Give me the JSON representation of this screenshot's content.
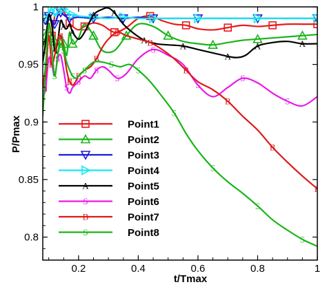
{
  "chart_data": {
    "type": "line",
    "title": "",
    "xlabel": "t/Tmax",
    "ylabel": "P/Pmax",
    "xlim": [
      0.08,
      1.0
    ],
    "ylim": [
      0.78,
      1.0
    ],
    "xticks": [
      0.2,
      0.4,
      0.6,
      0.8,
      1.0
    ],
    "xtick_labels": [
      "0.2",
      "0.4",
      "0.6",
      "0.8",
      "1"
    ],
    "yticks": [
      0.8,
      0.85,
      0.9,
      0.95,
      1.0
    ],
    "ytick_labels": [
      "0.8",
      "0.85",
      "0.9",
      "0.95",
      "1"
    ],
    "grid": false,
    "legend_position": "center-left",
    "series": [
      {
        "name": "Point1",
        "color": "#e8191a",
        "marker": "square",
        "x": [
          0.08,
          0.09,
          0.1,
          0.11,
          0.12,
          0.13,
          0.14,
          0.15,
          0.16,
          0.17,
          0.18,
          0.2,
          0.22,
          0.25,
          0.28,
          0.32,
          0.36,
          0.4,
          0.44,
          0.48,
          0.52,
          0.56,
          0.6,
          0.65,
          0.7,
          0.75,
          0.8,
          0.85,
          0.9,
          0.95,
          1.0
        ],
        "y": [
          0.93,
          0.95,
          0.985,
          0.975,
          0.992,
          0.994,
          0.999,
          0.996,
          0.991,
          0.986,
          0.983,
          0.98,
          0.983,
          0.986,
          0.984,
          0.978,
          0.982,
          0.99,
          0.992,
          0.988,
          0.985,
          0.984,
          0.981,
          0.98,
          0.982,
          0.984,
          0.983,
          0.984,
          0.985,
          0.985,
          0.985
        ]
      },
      {
        "name": "Point2",
        "color": "#19b419",
        "marker": "triangle",
        "x": [
          0.08,
          0.09,
          0.1,
          0.11,
          0.12,
          0.13,
          0.14,
          0.15,
          0.16,
          0.17,
          0.18,
          0.2,
          0.22,
          0.25,
          0.28,
          0.32,
          0.36,
          0.4,
          0.45,
          0.5,
          0.55,
          0.6,
          0.65,
          0.7,
          0.75,
          0.8,
          0.85,
          0.9,
          0.95,
          1.0
        ],
        "y": [
          0.965,
          0.975,
          0.99,
          0.985,
          0.97,
          0.96,
          0.975,
          0.968,
          0.958,
          0.978,
          0.968,
          0.973,
          0.985,
          0.975,
          0.962,
          0.962,
          0.975,
          0.985,
          0.983,
          0.975,
          0.97,
          0.968,
          0.967,
          0.969,
          0.971,
          0.972,
          0.973,
          0.974,
          0.975,
          0.976
        ]
      },
      {
        "name": "Point3",
        "color": "#1a1ad8",
        "marker": "triangle-down",
        "x": [
          0.08,
          0.09,
          0.1,
          0.11,
          0.12,
          0.13,
          0.14,
          0.15,
          0.17,
          0.2,
          0.25,
          0.3,
          0.35,
          0.4,
          0.45,
          0.5,
          0.6,
          0.7,
          0.8,
          0.9,
          1.0
        ],
        "y": [
          0.99,
          0.985,
          0.992,
          0.988,
          0.985,
          0.992,
          0.995,
          0.993,
          0.99,
          0.991,
          0.99,
          0.991,
          0.99,
          0.991,
          0.99,
          0.99,
          0.99,
          0.99,
          0.99,
          0.99,
          0.99
        ]
      },
      {
        "name": "Point4",
        "color": "#1ae8f0",
        "marker": "triangle-right",
        "x": [
          0.08,
          0.09,
          0.1,
          0.11,
          0.12,
          0.13,
          0.14,
          0.15,
          0.16,
          0.18,
          0.2,
          0.25,
          0.3,
          0.35,
          0.4,
          0.45,
          0.5,
          0.6,
          0.7,
          0.8,
          0.9,
          1.0
        ],
        "y": [
          0.99,
          0.99,
          0.995,
          0.999,
          0.992,
          0.996,
          0.999,
          0.998,
          0.995,
          0.993,
          0.992,
          0.991,
          0.99,
          0.991,
          0.99,
          0.99,
          0.99,
          0.99,
          0.99,
          0.99,
          0.99,
          0.99
        ]
      },
      {
        "name": "Point5",
        "color": "#000000",
        "marker": "letter-A",
        "x": [
          0.08,
          0.09,
          0.1,
          0.11,
          0.12,
          0.13,
          0.14,
          0.15,
          0.16,
          0.17,
          0.18,
          0.2,
          0.22,
          0.25,
          0.28,
          0.3,
          0.32,
          0.35,
          0.38,
          0.42,
          0.46,
          0.5,
          0.55,
          0.6,
          0.65,
          0.7,
          0.73,
          0.76,
          0.8,
          0.85,
          0.9,
          0.95,
          1.0
        ],
        "y": [
          0.952,
          0.97,
          0.993,
          0.985,
          0.962,
          0.97,
          0.988,
          0.983,
          0.981,
          0.985,
          0.978,
          0.972,
          0.978,
          0.993,
          0.998,
          0.999,
          0.995,
          0.985,
          0.978,
          0.971,
          0.968,
          0.967,
          0.966,
          0.963,
          0.96,
          0.957,
          0.956,
          0.958,
          0.966,
          0.969,
          0.97,
          0.968,
          0.968
        ]
      },
      {
        "name": "Point6",
        "color": "#e81ae8",
        "marker": "letter-S",
        "x": [
          0.08,
          0.09,
          0.1,
          0.11,
          0.12,
          0.13,
          0.14,
          0.15,
          0.16,
          0.17,
          0.18,
          0.2,
          0.22,
          0.24,
          0.26,
          0.28,
          0.3,
          0.33,
          0.36,
          0.4,
          0.45,
          0.5,
          0.55,
          0.6,
          0.65,
          0.7,
          0.75,
          0.8,
          0.85,
          0.9,
          0.95,
          1.0
        ],
        "y": [
          0.92,
          0.93,
          0.955,
          0.95,
          0.94,
          0.955,
          0.958,
          0.945,
          0.93,
          0.925,
          0.93,
          0.935,
          0.94,
          0.938,
          0.945,
          0.948,
          0.945,
          0.938,
          0.942,
          0.955,
          0.963,
          0.958,
          0.95,
          0.932,
          0.922,
          0.93,
          0.938,
          0.934,
          0.925,
          0.918,
          0.914,
          0.922
        ]
      },
      {
        "name": "Point7",
        "color": "#dc1a1a",
        "marker": "letter-B",
        "x": [
          0.08,
          0.09,
          0.1,
          0.11,
          0.12,
          0.13,
          0.14,
          0.15,
          0.16,
          0.17,
          0.18,
          0.19,
          0.2,
          0.22,
          0.24,
          0.26,
          0.28,
          0.3,
          0.33,
          0.36,
          0.4,
          0.44,
          0.48,
          0.52,
          0.56,
          0.6,
          0.65,
          0.7,
          0.75,
          0.8,
          0.85,
          0.9,
          0.95,
          1.0
        ],
        "y": [
          0.93,
          0.94,
          0.975,
          0.95,
          0.958,
          0.972,
          0.975,
          0.962,
          0.945,
          0.935,
          0.932,
          0.935,
          0.94,
          0.945,
          0.948,
          0.955,
          0.965,
          0.972,
          0.978,
          0.975,
          0.972,
          0.969,
          0.963,
          0.955,
          0.945,
          0.935,
          0.928,
          0.918,
          0.905,
          0.893,
          0.878,
          0.865,
          0.853,
          0.842
        ]
      },
      {
        "name": "Point8",
        "color": "#19b419",
        "marker": "letter-S",
        "x": [
          0.08,
          0.09,
          0.1,
          0.11,
          0.12,
          0.13,
          0.14,
          0.15,
          0.16,
          0.17,
          0.18,
          0.19,
          0.2,
          0.22,
          0.25,
          0.28,
          0.31,
          0.34,
          0.37,
          0.4,
          0.44,
          0.48,
          0.52,
          0.56,
          0.6,
          0.65,
          0.7,
          0.75,
          0.8,
          0.85,
          0.9,
          0.95,
          1.0
        ],
        "y": [
          0.905,
          0.95,
          0.985,
          0.965,
          0.94,
          0.958,
          0.968,
          0.962,
          0.952,
          0.945,
          0.94,
          0.938,
          0.94,
          0.945,
          0.952,
          0.952,
          0.95,
          0.948,
          0.95,
          0.945,
          0.935,
          0.922,
          0.908,
          0.89,
          0.875,
          0.86,
          0.848,
          0.838,
          0.827,
          0.815,
          0.806,
          0.798,
          0.792
        ]
      }
    ]
  }
}
